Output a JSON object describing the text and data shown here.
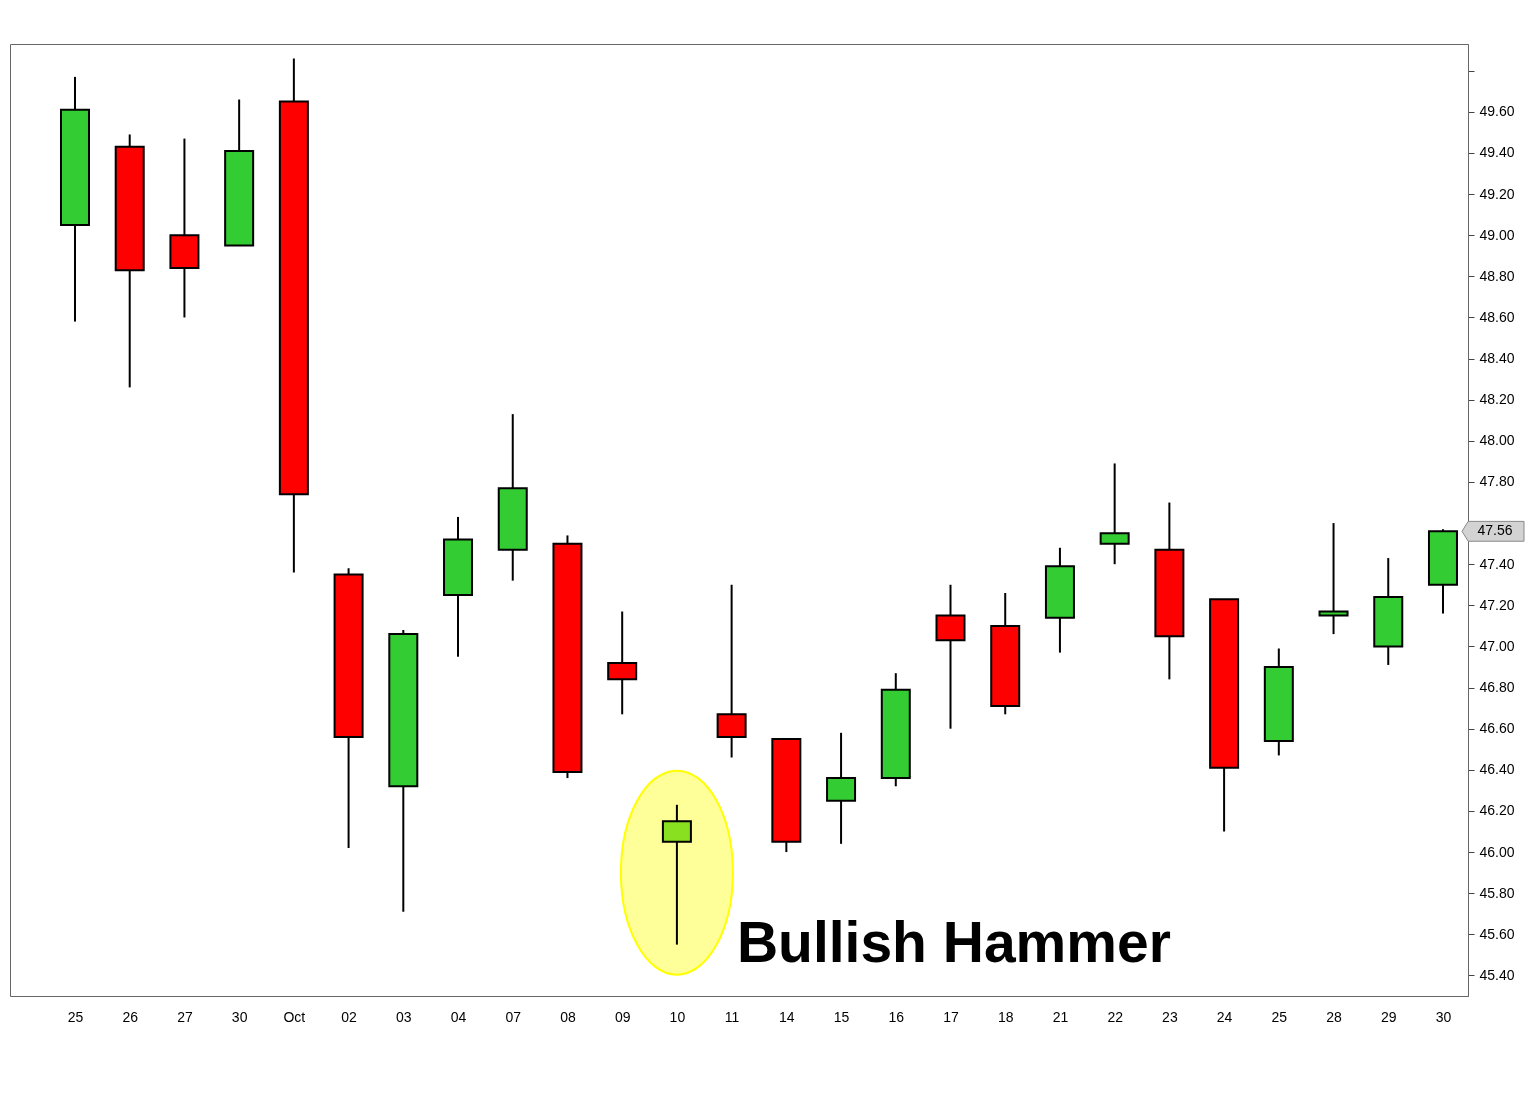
{
  "chart_data": {
    "type": "candlestick",
    "categories": [
      "25",
      "26",
      "27",
      "30",
      "Oct",
      "02",
      "03",
      "04",
      "07",
      "08",
      "09",
      "10",
      "11",
      "14",
      "15",
      "16",
      "17",
      "18",
      "21",
      "22",
      "23",
      "24",
      "25",
      "28",
      "29",
      "30"
    ],
    "ohlc": [
      [
        49.05,
        49.77,
        48.58,
        49.61
      ],
      [
        49.43,
        49.49,
        48.26,
        48.83
      ],
      [
        49.0,
        49.47,
        48.6,
        48.84
      ],
      [
        48.95,
        49.66,
        48.95,
        49.41
      ],
      [
        49.65,
        49.86,
        47.36,
        47.74
      ],
      [
        47.35,
        47.38,
        46.02,
        46.56
      ],
      [
        46.32,
        47.08,
        45.71,
        47.06
      ],
      [
        47.25,
        47.63,
        46.95,
        47.52
      ],
      [
        47.47,
        48.13,
        47.32,
        47.77
      ],
      [
        47.5,
        47.54,
        46.36,
        46.39
      ],
      [
        46.92,
        47.17,
        46.67,
        46.84
      ],
      [
        46.05,
        46.23,
        45.55,
        46.15
      ],
      [
        46.67,
        47.3,
        46.46,
        46.56
      ],
      [
        46.55,
        46.55,
        46.0,
        46.05
      ],
      [
        46.25,
        46.58,
        46.04,
        46.36
      ],
      [
        46.36,
        46.87,
        46.32,
        46.79
      ],
      [
        47.15,
        47.3,
        46.6,
        47.03
      ],
      [
        47.1,
        47.26,
        46.67,
        46.71
      ],
      [
        47.14,
        47.48,
        46.97,
        47.39
      ],
      [
        47.5,
        47.89,
        47.4,
        47.55
      ],
      [
        47.47,
        47.7,
        46.84,
        47.05
      ],
      [
        47.23,
        47.23,
        46.1,
        46.41
      ],
      [
        46.54,
        46.99,
        46.47,
        46.9
      ],
      [
        47.15,
        47.6,
        47.06,
        47.17
      ],
      [
        47.0,
        47.43,
        46.91,
        47.24
      ],
      [
        47.3,
        47.57,
        47.16,
        47.56
      ]
    ],
    "colors": [
      "#33cc33",
      "#ff0000",
      "#ff0000",
      "#33cc33",
      "#ff0000",
      "#ff0000",
      "#33cc33",
      "#33cc33",
      "#33cc33",
      "#ff0000",
      "#ff0000",
      "#88e020",
      "#ff0000",
      "#ff0000",
      "#33cc33",
      "#33cc33",
      "#ff0000",
      "#ff0000",
      "#33cc33",
      "#33cc33",
      "#ff0000",
      "#ff0000",
      "#33cc33",
      "#33cc33",
      "#33cc33",
      "#33cc33"
    ],
    "ylim": [
      45.3,
      49.93
    ],
    "yticks": [
      {
        "value": 45.4,
        "label": "45.40"
      },
      {
        "value": 45.6,
        "label": "45.60"
      },
      {
        "value": 45.8,
        "label": "45.80"
      },
      {
        "value": 46.0,
        "label": "46.00"
      },
      {
        "value": 46.2,
        "label": "46.20"
      },
      {
        "value": 46.4,
        "label": "46.40"
      },
      {
        "value": 46.6,
        "label": "46.60"
      },
      {
        "value": 46.8,
        "label": "46.80"
      },
      {
        "value": 47.0,
        "label": "47.00"
      },
      {
        "value": 47.2,
        "label": "47.20"
      },
      {
        "value": 47.4,
        "label": "47.40"
      },
      {
        "value": 47.6,
        "label": null
      },
      {
        "value": 47.8,
        "label": "47.80"
      },
      {
        "value": 48.0,
        "label": "48.00"
      },
      {
        "value": 48.2,
        "label": "48.20"
      },
      {
        "value": 48.4,
        "label": "48.40"
      },
      {
        "value": 48.6,
        "label": "48.60"
      },
      {
        "value": 48.8,
        "label": "48.80"
      },
      {
        "value": 49.0,
        "label": "49.00"
      },
      {
        "value": 49.2,
        "label": "49.20"
      },
      {
        "value": 49.4,
        "label": "49.40"
      },
      {
        "value": 49.6,
        "label": "49.60"
      },
      {
        "value": 49.8,
        "label": null
      }
    ],
    "annotations": [
      {
        "text": "Bullish Hammer",
        "x": "10",
        "y": 45.9
      },
      "47.56"
    ]
  }
}
